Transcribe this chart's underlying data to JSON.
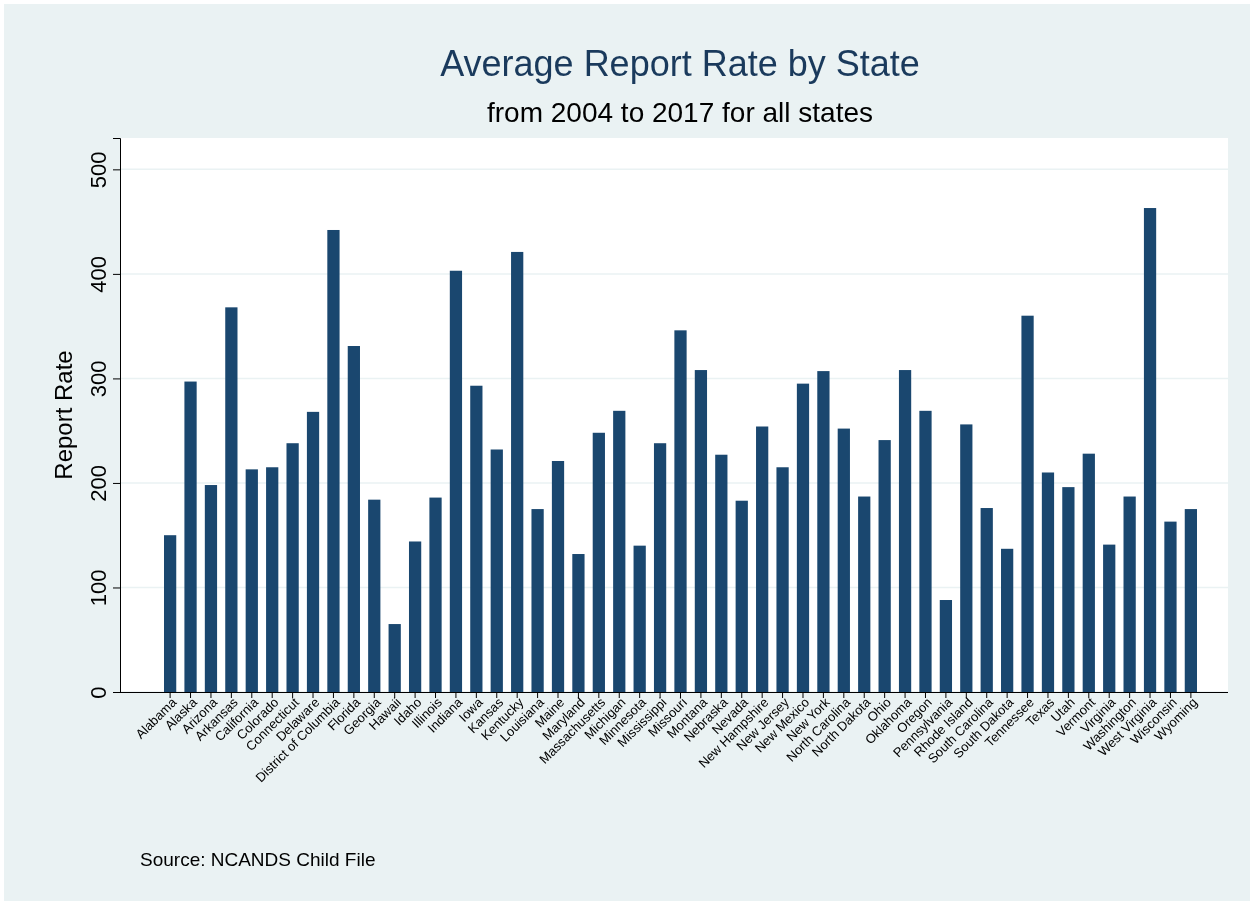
{
  "chart_data": {
    "type": "bar",
    "title": "Average Report Rate by State",
    "subtitle": "from 2004 to 2017 for all states",
    "ylabel": "Report Rate",
    "annotations": [
      "Source: NCANDS Child File"
    ],
    "categories": [
      "Alabama",
      "Alaska",
      "Arizona",
      "Arkansas",
      "California",
      "Colorado",
      "Connecticut",
      "Delaware",
      "District of Columbia",
      "Florida",
      "Georgia",
      "Hawaii",
      "Idaho",
      "Illinois",
      "Indiana",
      "Iowa",
      "Kansas",
      "Kentucky",
      "Louisiana",
      "Maine",
      "Maryland",
      "Massachusetts",
      "Michigan",
      "Minnesota",
      "Mississippi",
      "Missouri",
      "Montana",
      "Nebraska",
      "Nevada",
      "New Hampshire",
      "New Jersey",
      "New Mexico",
      "New York",
      "North Carolina",
      "North Dakota",
      "Ohio",
      "Oklahoma",
      "Oregon",
      "Pennsylvania",
      "Rhode Island",
      "South Carolina",
      "South Dakota",
      "Tennessee",
      "Texas",
      "Utah",
      "Vermont",
      "Virginia",
      "Washington",
      "West Virginia",
      "Wisconsin",
      "Wyoming"
    ],
    "values": [
      150,
      297,
      198,
      368,
      213,
      215,
      238,
      268,
      442,
      331,
      184,
      65,
      144,
      186,
      403,
      293,
      232,
      421,
      175,
      221,
      132,
      248,
      269,
      140,
      238,
      346,
      308,
      227,
      183,
      254,
      215,
      295,
      307,
      252,
      187,
      241,
      308,
      269,
      88,
      256,
      176,
      137,
      360,
      210,
      196,
      228,
      141,
      187,
      463,
      163,
      175
    ],
    "color": "#1a476f",
    "ylim": [
      0,
      530
    ],
    "yticks": [
      0,
      100,
      200,
      300,
      400,
      500
    ],
    "grid": "y"
  }
}
